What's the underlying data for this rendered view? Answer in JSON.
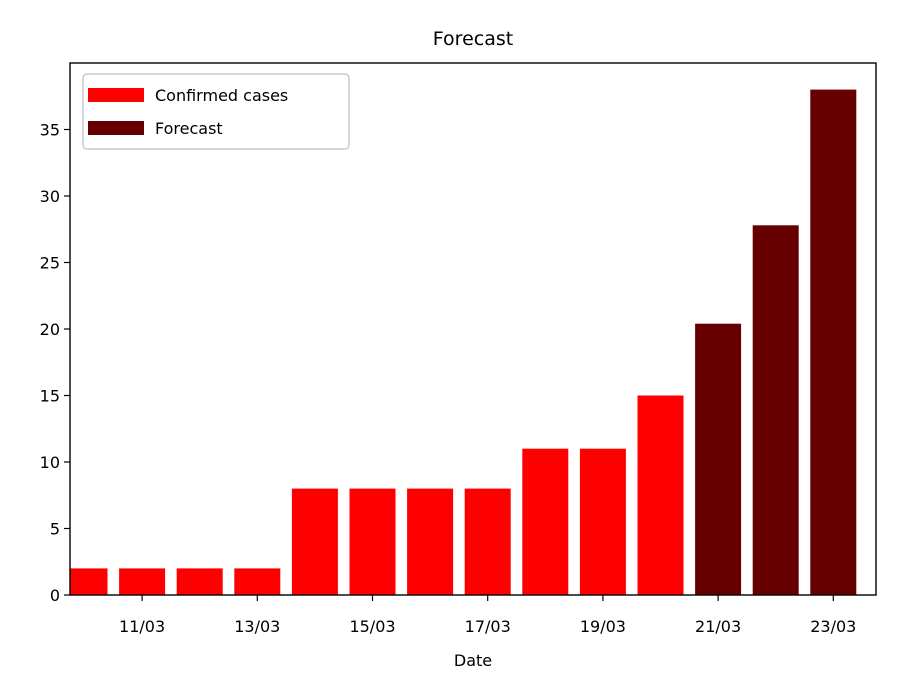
{
  "chart_data": {
    "type": "bar",
    "title": "Forecast",
    "xlabel": "Date",
    "ylabel": "",
    "ylim": [
      0,
      40
    ],
    "yticks": [
      0,
      5,
      10,
      15,
      20,
      25,
      30,
      35
    ],
    "x_tick_labels": [
      "11/03",
      "13/03",
      "15/03",
      "17/03",
      "19/03",
      "21/03",
      "23/03"
    ],
    "x_tick_dates": [
      "11/03",
      "13/03",
      "15/03",
      "17/03",
      "19/03",
      "21/03",
      "23/03"
    ],
    "legend_position": "top-left",
    "grid": false,
    "series": [
      {
        "name": "Confirmed cases",
        "color": "#ff0000",
        "points": [
          {
            "x": "10/03",
            "y": 2
          },
          {
            "x": "11/03",
            "y": 2
          },
          {
            "x": "12/03",
            "y": 2
          },
          {
            "x": "13/03",
            "y": 2
          },
          {
            "x": "14/03",
            "y": 8
          },
          {
            "x": "15/03",
            "y": 8
          },
          {
            "x": "16/03",
            "y": 8
          },
          {
            "x": "17/03",
            "y": 8
          },
          {
            "x": "18/03",
            "y": 11
          },
          {
            "x": "19/03",
            "y": 11
          },
          {
            "x": "20/03",
            "y": 15
          }
        ]
      },
      {
        "name": "Forecast",
        "color": "#660000",
        "points": [
          {
            "x": "21/03",
            "y": 20.4
          },
          {
            "x": "22/03",
            "y": 27.8
          },
          {
            "x": "23/03",
            "y": 38
          }
        ]
      }
    ]
  }
}
